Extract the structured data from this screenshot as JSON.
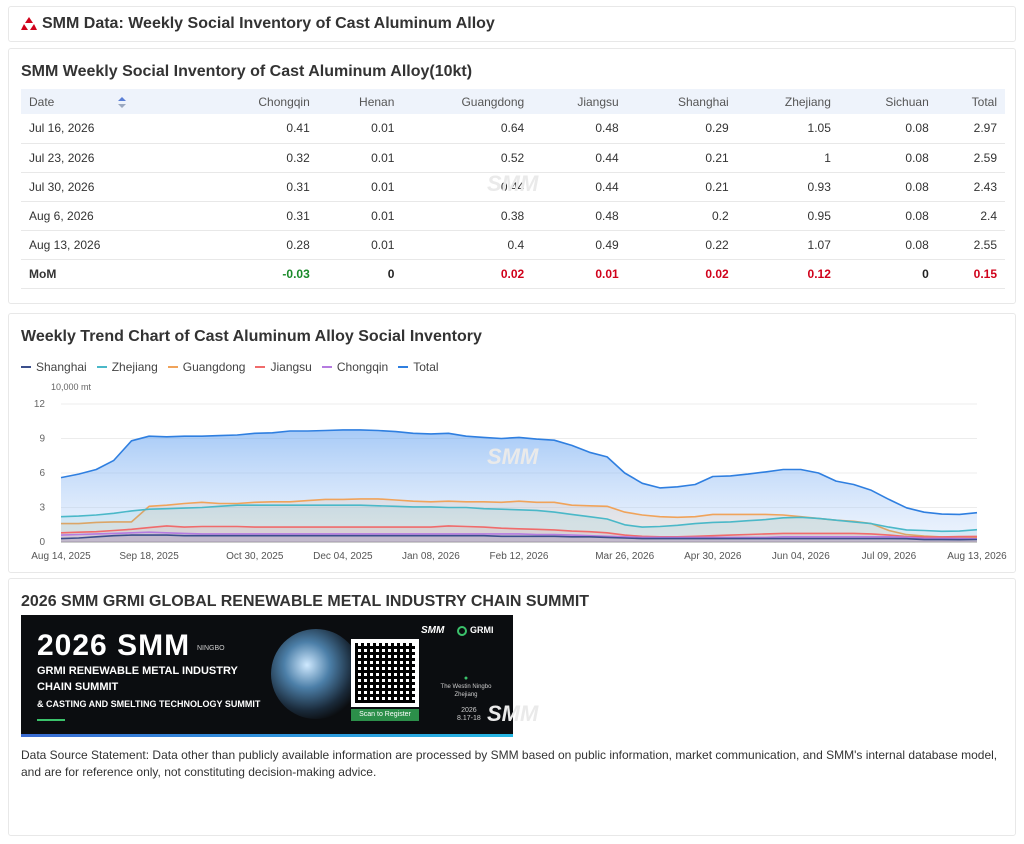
{
  "header": {
    "title": "SMM Data: Weekly Social Inventory of Cast Aluminum Alloy"
  },
  "table_section": {
    "title": "SMM Weekly Social Inventory of Cast Aluminum Alloy(10kt)",
    "columns": [
      "Date",
      "Chongqin",
      "Henan",
      "Guangdong",
      "Jiangsu",
      "Shanghai",
      "Zhejiang",
      "Sichuan",
      "Total"
    ],
    "rows": [
      [
        "Jul 16, 2026",
        "0.41",
        "0.01",
        "0.64",
        "0.48",
        "0.29",
        "1.05",
        "0.08",
        "2.97"
      ],
      [
        "Jul 23, 2026",
        "0.32",
        "0.01",
        "0.52",
        "0.44",
        "0.21",
        "1",
        "0.08",
        "2.59"
      ],
      [
        "Jul 30, 2026",
        "0.31",
        "0.01",
        "0.44",
        "0.44",
        "0.21",
        "0.93",
        "0.08",
        "2.43"
      ],
      [
        "Aug 6, 2026",
        "0.31",
        "0.01",
        "0.38",
        "0.48",
        "0.2",
        "0.95",
        "0.08",
        "2.4"
      ],
      [
        "Aug 13, 2026",
        "0.28",
        "0.01",
        "0.4",
        "0.49",
        "0.22",
        "1.07",
        "0.08",
        "2.55"
      ]
    ],
    "mom": [
      "MoM",
      "-0.03",
      "0",
      "0.02",
      "0.01",
      "0.02",
      "0.12",
      "0",
      "0.15"
    ],
    "mom_colors": {
      "negative": "#1a8a2a",
      "zero": "#222222",
      "positive": "#d0021b"
    }
  },
  "chart_section": {
    "title": "Weekly Trend Chart of Cast Aluminum Alloy Social Inventory"
  },
  "chart_data": {
    "type": "area",
    "ylabel": "10,000 mt",
    "ylim": [
      0,
      12
    ],
    "yticks": [
      0,
      3,
      6,
      9,
      12
    ],
    "grid": true,
    "legend_position": "top-left",
    "x_ticks": [
      "Aug 14, 2025",
      "Sep 18, 2025",
      "Oct 30, 2025",
      "Dec 04, 2025",
      "Jan 08, 2026",
      "Feb 12, 2026",
      "Mar 26, 2026",
      "Apr 30, 2026",
      "Jun 04, 2026",
      "Jul 09, 2026",
      "Aug 13, 2026"
    ],
    "x": [
      "Aug 14, 2025",
      "Aug 21, 2025",
      "Aug 28, 2025",
      "Sep 04, 2025",
      "Sep 11, 2025",
      "Sep 18, 2025",
      "Sep 25, 2025",
      "Oct 02, 2025",
      "Oct 09, 2025",
      "Oct 16, 2025",
      "Oct 23, 2025",
      "Oct 30, 2025",
      "Nov 06, 2025",
      "Nov 13, 2025",
      "Nov 20, 2025",
      "Nov 27, 2025",
      "Dec 04, 2025",
      "Dec 11, 2025",
      "Dec 18, 2025",
      "Dec 25, 2025",
      "Jan 01, 2026",
      "Jan 08, 2026",
      "Jan 15, 2026",
      "Jan 22, 2026",
      "Jan 29, 2026",
      "Feb 05, 2026",
      "Feb 12, 2026",
      "Feb 19, 2026",
      "Feb 26, 2026",
      "Mar 05, 2026",
      "Mar 12, 2026",
      "Mar 19, 2026",
      "Mar 26, 2026",
      "Apr 02, 2026",
      "Apr 09, 2026",
      "Apr 16, 2026",
      "Apr 23, 2026",
      "Apr 30, 2026",
      "May 07, 2026",
      "May 14, 2026",
      "May 21, 2026",
      "May 28, 2026",
      "Jun 04, 2026",
      "Jun 11, 2026",
      "Jun 18, 2026",
      "Jun 25, 2026",
      "Jul 02, 2026",
      "Jul 09, 2026",
      "Jul 16, 2026",
      "Jul 23, 2026",
      "Jul 30, 2026",
      "Aug 06, 2026",
      "Aug 13, 2026"
    ],
    "series": [
      {
        "name": "Total",
        "color": "#2f7fe0",
        "values": [
          5.6,
          5.9,
          6.3,
          7.1,
          8.8,
          9.2,
          9.15,
          9.2,
          9.2,
          9.25,
          9.3,
          9.45,
          9.5,
          9.65,
          9.65,
          9.7,
          9.75,
          9.75,
          9.7,
          9.6,
          9.45,
          9.4,
          9.45,
          9.2,
          9.1,
          9.0,
          9.1,
          8.95,
          8.85,
          8.4,
          7.8,
          7.4,
          6.0,
          5.1,
          4.7,
          4.8,
          5.0,
          5.7,
          5.75,
          5.9,
          6.1,
          6.3,
          6.3,
          6.0,
          5.3,
          5.0,
          4.5,
          3.7,
          2.97,
          2.59,
          2.43,
          2.4,
          2.55
        ]
      },
      {
        "name": "Guangdong",
        "color": "#f0a35a",
        "values": [
          1.6,
          1.6,
          1.7,
          1.75,
          1.75,
          3.1,
          3.2,
          3.35,
          3.45,
          3.35,
          3.35,
          3.45,
          3.5,
          3.5,
          3.6,
          3.7,
          3.7,
          3.75,
          3.75,
          3.65,
          3.55,
          3.5,
          3.55,
          3.5,
          3.5,
          3.45,
          3.55,
          3.45,
          3.45,
          3.2,
          3.15,
          3.1,
          2.6,
          2.35,
          2.2,
          2.15,
          2.2,
          2.4,
          2.4,
          2.4,
          2.4,
          2.35,
          2.2,
          2.05,
          1.9,
          1.8,
          1.6,
          1.0,
          0.64,
          0.52,
          0.44,
          0.38,
          0.4
        ]
      },
      {
        "name": "Zhejiang",
        "color": "#4ab8c8",
        "values": [
          2.2,
          2.25,
          2.35,
          2.5,
          2.7,
          2.85,
          2.9,
          2.95,
          3.0,
          3.1,
          3.2,
          3.2,
          3.2,
          3.2,
          3.2,
          3.2,
          3.2,
          3.2,
          3.15,
          3.1,
          3.05,
          3.05,
          3.0,
          3.0,
          2.9,
          2.85,
          2.8,
          2.75,
          2.6,
          2.4,
          2.2,
          2.0,
          1.5,
          1.3,
          1.35,
          1.45,
          1.6,
          1.7,
          1.75,
          1.85,
          1.95,
          2.1,
          2.15,
          2.05,
          1.9,
          1.75,
          1.6,
          1.3,
          1.05,
          1.0,
          0.93,
          0.95,
          1.07
        ]
      },
      {
        "name": "Jiangsu",
        "color": "#f06b6b",
        "values": [
          0.8,
          0.85,
          0.9,
          1.0,
          1.1,
          1.25,
          1.4,
          1.3,
          1.35,
          1.35,
          1.35,
          1.3,
          1.3,
          1.3,
          1.3,
          1.3,
          1.3,
          1.3,
          1.3,
          1.3,
          1.3,
          1.3,
          1.4,
          1.35,
          1.3,
          1.2,
          1.15,
          1.1,
          1.05,
          0.95,
          0.9,
          0.8,
          0.6,
          0.5,
          0.45,
          0.45,
          0.5,
          0.55,
          0.6,
          0.65,
          0.7,
          0.75,
          0.75,
          0.75,
          0.75,
          0.75,
          0.7,
          0.6,
          0.48,
          0.44,
          0.44,
          0.48,
          0.49
        ]
      },
      {
        "name": "Shanghai",
        "color": "#3b4f8c",
        "values": [
          0.3,
          0.35,
          0.45,
          0.55,
          0.6,
          0.6,
          0.6,
          0.55,
          0.55,
          0.55,
          0.55,
          0.55,
          0.55,
          0.55,
          0.55,
          0.55,
          0.55,
          0.55,
          0.55,
          0.55,
          0.55,
          0.55,
          0.55,
          0.55,
          0.55,
          0.5,
          0.5,
          0.5,
          0.5,
          0.45,
          0.45,
          0.4,
          0.35,
          0.3,
          0.3,
          0.3,
          0.3,
          0.3,
          0.3,
          0.3,
          0.3,
          0.3,
          0.3,
          0.3,
          0.3,
          0.3,
          0.3,
          0.3,
          0.29,
          0.21,
          0.21,
          0.2,
          0.22
        ]
      },
      {
        "name": "Chongqin",
        "color": "#b57be0",
        "values": [
          0.6,
          0.65,
          0.7,
          0.75,
          0.8,
          0.85,
          0.8,
          0.75,
          0.7,
          0.7,
          0.7,
          0.7,
          0.7,
          0.7,
          0.7,
          0.7,
          0.7,
          0.7,
          0.7,
          0.7,
          0.7,
          0.7,
          0.7,
          0.7,
          0.7,
          0.7,
          0.7,
          0.65,
          0.65,
          0.6,
          0.55,
          0.5,
          0.45,
          0.4,
          0.4,
          0.4,
          0.4,
          0.4,
          0.4,
          0.4,
          0.4,
          0.45,
          0.45,
          0.45,
          0.45,
          0.45,
          0.45,
          0.45,
          0.41,
          0.32,
          0.31,
          0.31,
          0.28
        ]
      }
    ],
    "legend_order": [
      "Shanghai",
      "Zhejiang",
      "Guangdong",
      "Jiangsu",
      "Chongqin",
      "Total"
    ]
  },
  "summit_section": {
    "title": "2026 SMM GRMI GLOBAL RENEWABLE METAL INDUSTRY CHAIN SUMMIT",
    "banner": {
      "year_text": "2026 SMM",
      "city_tag": "NINGBO",
      "line1": "GRMI RENEWABLE METAL INDUSTRY",
      "line2": "CHAIN SUMMIT",
      "line3": "& CASTING AND SMELTING TECHNOLOGY SUMMIT",
      "brand_smm": "SMM",
      "brand_grmi": "GRMI",
      "scan_label": "Scan to Register",
      "venue_line1": "The Westin Ningbo",
      "venue_line2": "Zhejiang",
      "date_line1": "2026",
      "date_line2": "8.17-18"
    },
    "statement": "Data Source Statement: Data other than publicly available information are processed by SMM based on public information, market communication, and SMM's internal database model, and are for reference only, not constituting decision-making advice."
  },
  "watermark": "SMM"
}
